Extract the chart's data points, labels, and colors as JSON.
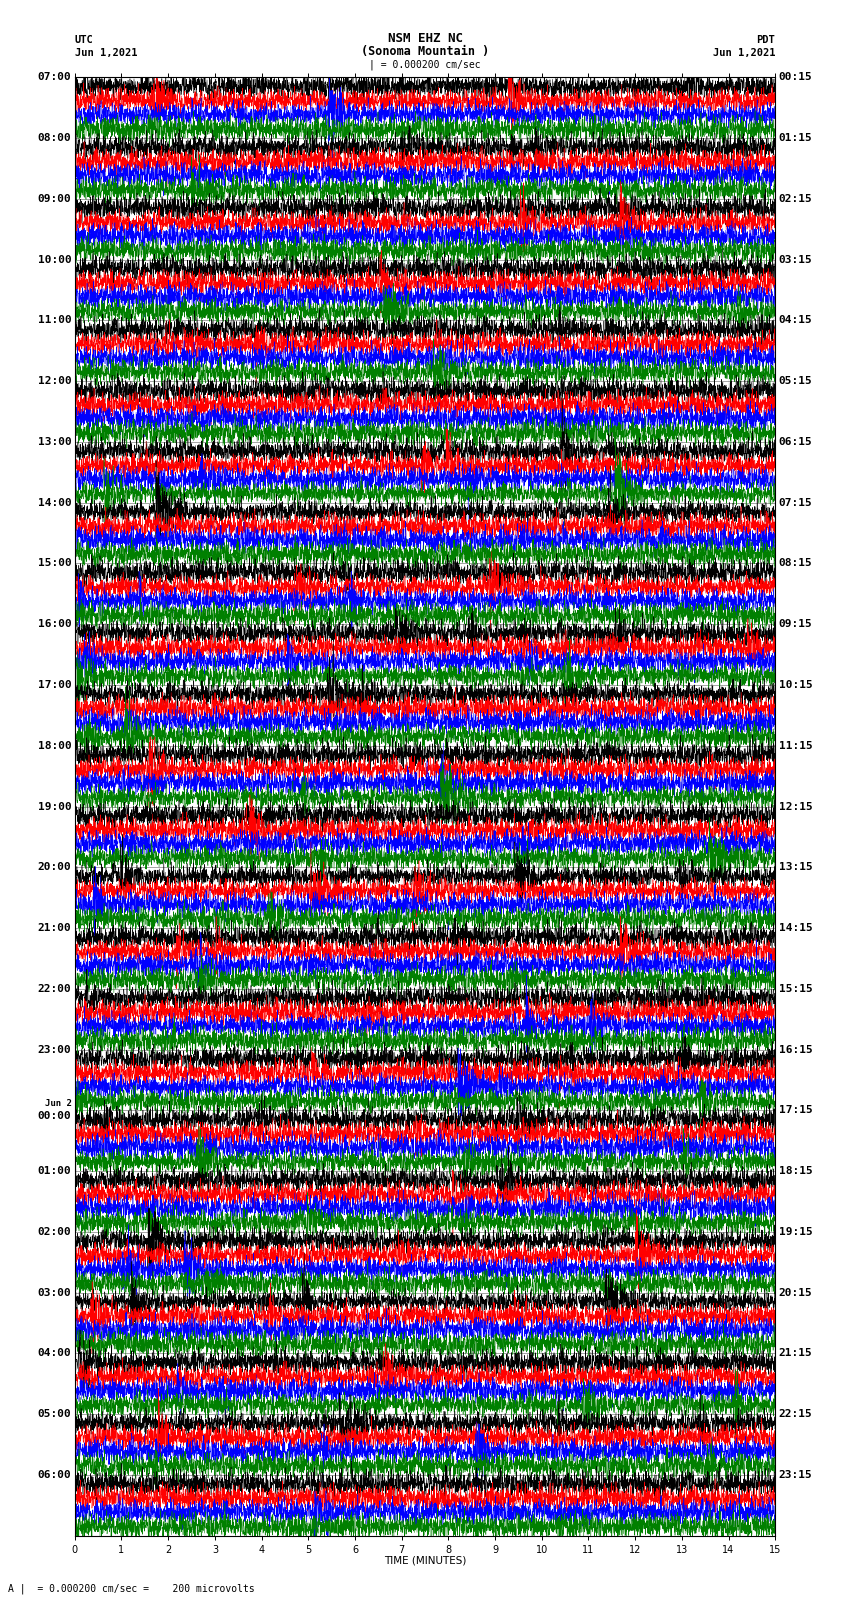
{
  "title_line1": "NSM EHZ NC",
  "title_line2": "(Sonoma Mountain )",
  "title_scale": "| = 0.000200 cm/sec",
  "utc_label": "UTC",
  "utc_date": "Jun 1,2021",
  "pdt_label": "PDT",
  "pdt_date": "Jun 1,2021",
  "xlabel": "TIME (MINUTES)",
  "scale_label": "A |  = 0.000200 cm/sec =    200 microvolts",
  "left_times": [
    "07:00",
    "08:00",
    "09:00",
    "10:00",
    "11:00",
    "12:00",
    "13:00",
    "14:00",
    "15:00",
    "16:00",
    "17:00",
    "18:00",
    "19:00",
    "20:00",
    "21:00",
    "22:00",
    "23:00",
    "Jun 2\n00:00",
    "01:00",
    "02:00",
    "03:00",
    "04:00",
    "05:00",
    "06:00"
  ],
  "right_times": [
    "00:15",
    "01:15",
    "02:15",
    "03:15",
    "04:15",
    "05:15",
    "06:15",
    "07:15",
    "08:15",
    "09:15",
    "10:15",
    "11:15",
    "12:15",
    "13:15",
    "14:15",
    "15:15",
    "16:15",
    "17:15",
    "18:15",
    "19:15",
    "20:15",
    "21:15",
    "22:15",
    "23:15"
  ],
  "num_rows": 24,
  "traces_per_row": 4,
  "trace_colors": [
    "black",
    "red",
    "blue",
    "green"
  ],
  "xmin": 0,
  "xmax": 15,
  "bg_color": "white",
  "plot_bg_color": "white",
  "fig_width": 8.5,
  "fig_height": 16.13,
  "dpi": 100,
  "title_fontsize": 9,
  "label_fontsize": 7.5,
  "tick_fontsize": 7,
  "time_label_fontsize": 8
}
